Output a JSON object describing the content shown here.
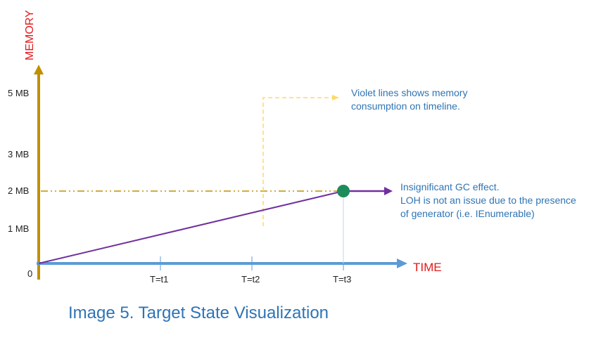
{
  "axis": {
    "y_title": "MEMORY",
    "x_title": "TIME",
    "origin_label": "0",
    "y_ticks": [
      "5 MB",
      "3 MB",
      "2 MB",
      "1 MB"
    ],
    "x_ticks": [
      "T=t1",
      "T=t2",
      "T=t3"
    ]
  },
  "annotations": {
    "violet_note_line1": "Violet lines shows memory",
    "violet_note_line2": "consumption on timeline.",
    "gc_note_line1": "Insignificant GC effect.",
    "gc_note_line2": "LOH is not an issue due to the presence",
    "gc_note_line3": "of generator (i.e. IEnumerable)"
  },
  "caption": "Image 5. Target State Visualization",
  "colors": {
    "y_axis": "#C09000",
    "x_axis": "#5B9BD5",
    "memory_line": "#7030A0",
    "dash_line": "#C09000",
    "callout": "#FFD966",
    "point": "#1E8C5A",
    "axis_title": "#E31A1C",
    "annotation": "#2E74B5"
  }
}
